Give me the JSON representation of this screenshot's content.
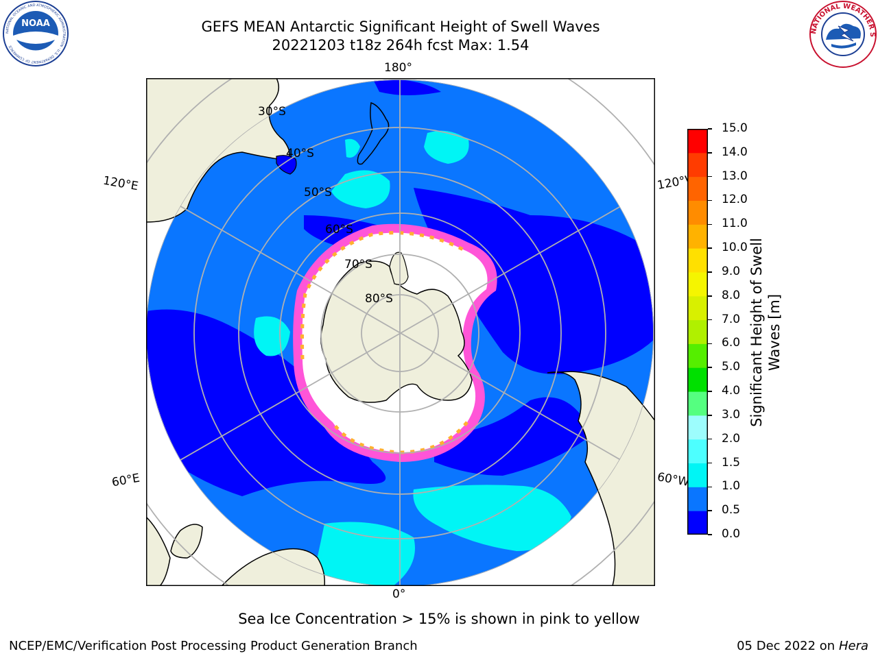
{
  "header": {
    "title_line1": "GEFS MEAN Antarctic Significant Height of Swell Waves",
    "title_line2": "20221203 t18z 264h fcst   Max: 1.54"
  },
  "logos": {
    "noaa": {
      "text": "NOAA",
      "ring_text": "NATIONAL OCEANIC AND ATMOSPHERIC ADMINISTRATION · U.S. DEPARTMENT OF COMMERCE"
    },
    "nws": {
      "ring_text": "NATIONAL WEATHER SERVICE"
    }
  },
  "map": {
    "lon_labels": {
      "top": "180°",
      "bottom": "0°",
      "upper_left": "120°E",
      "upper_right": "120°W",
      "lower_left": "60°E",
      "lower_right": "60°W"
    },
    "lat_labels": [
      "30°S",
      "40°S",
      "50°S",
      "60°S",
      "70°S",
      "80°S"
    ],
    "colors": {
      "land": "#efefdc",
      "ocean_0": "#0000ff",
      "ocean_05": "#0a76ff",
      "ocean_10": "#00f5f5",
      "ice_edge": "#ff55d8",
      "ice_inner": "#ffffff",
      "ice_orange": "#ffb030",
      "grid": "#b0b0b0"
    }
  },
  "colorbar": {
    "ticks": [
      "0.0",
      "0.5",
      "1.0",
      "1.5",
      "2.0",
      "3.0",
      "4.0",
      "5.0",
      "6.0",
      "7.0",
      "8.0",
      "9.0",
      "10.0",
      "11.0",
      "12.0",
      "13.0",
      "14.0",
      "15.0"
    ],
    "colors": [
      "#0000ff",
      "#0a76ff",
      "#00f5f5",
      "#4dffff",
      "#9dfdfd",
      "#55ff80",
      "#00e000",
      "#55ee00",
      "#b0f000",
      "#d8f000",
      "#f5f500",
      "#ffe000",
      "#ffb200",
      "#ff8c00",
      "#ff6400",
      "#ff3c00",
      "#ff0000"
    ],
    "label": "Significant Height of Swell Waves [m]"
  },
  "caption": "Sea Ice Concentration > 15% is shown in pink to yellow",
  "footer": {
    "left": "NCEP/EMC/Verification Post Processing Product Generation Branch",
    "right_date": "05 Dec 2022 on",
    "right_machine": "Hera"
  }
}
